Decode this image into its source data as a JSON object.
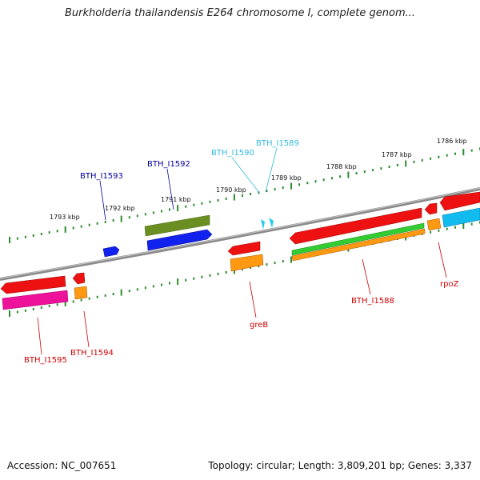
{
  "title": "Burkholderia thailandensis E264 chromosome I, complete genom...",
  "footer": {
    "accession": "Accession: NC_007651",
    "summary": "Topology: circular; Length: 3,809,201 bp; Genes: 3,337"
  },
  "ruler_labels": [
    "1793 kbp",
    "1792 kbp",
    "1791 kbp",
    "1790 kbp",
    "1789 kbp",
    "1788 kbp",
    "1787 kbp",
    "1786 kbp"
  ],
  "gene_labels": {
    "forward_strand": [
      {
        "text": "BTH_I1593",
        "color": "#000099"
      },
      {
        "text": "BTH_I1592",
        "color": "#000099"
      },
      {
        "text": "BTH_I1590",
        "color": "#33bbdd"
      },
      {
        "text": "BTH_I1589",
        "color": "#33bbdd"
      }
    ],
    "reverse_strand": [
      {
        "text": "BTH_I1595",
        "color": "#cc0000"
      },
      {
        "text": "BTH_I1594",
        "color": "#cc0000"
      },
      {
        "text": "greB",
        "color": "#cc0000"
      },
      {
        "text": "BTH_I1588",
        "color": "#cc0000"
      },
      {
        "text": "rpoZ",
        "color": "#cc0000"
      }
    ]
  },
  "colors": {
    "backbone": "#8a8a8a",
    "ruler_ticks": "#2e8b2e",
    "gene_red": "#ee1111",
    "gene_blue": "#1122ee",
    "gene_olive": "#6b8e23",
    "gene_green": "#33cc33",
    "gene_orange": "#ff9911",
    "gene_magenta": "#ee1199",
    "gene_cyan": "#11bbee"
  }
}
